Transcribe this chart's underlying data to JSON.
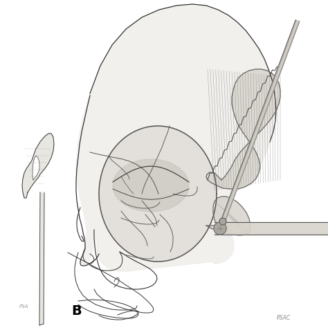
{
  "background_color": "#ffffff",
  "figure_width": 4.74,
  "figure_height": 4.74,
  "dpi": 100,
  "label_B": "B",
  "label_B_fontsize": 14,
  "label_B_fontweight": "bold",
  "watermark_left": "PSA",
  "watermark_right": "PSAC",
  "skull_fill": "#e8e6e0",
  "skull_light": "#f0eeea",
  "muscle_fill": "#d8d4cc",
  "muscle_dark": "#c0bbb0",
  "retractor_color": "#c8c4bc",
  "instrument_color": "#b0aca4",
  "line_color": "#333333",
  "fracture_color": "#555555"
}
